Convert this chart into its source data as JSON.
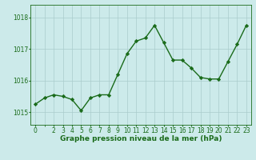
{
  "x": [
    0,
    1,
    2,
    3,
    4,
    5,
    6,
    7,
    8,
    9,
    10,
    11,
    12,
    13,
    14,
    15,
    16,
    17,
    18,
    19,
    20,
    21,
    22,
    23
  ],
  "y": [
    1015.25,
    1015.45,
    1015.55,
    1015.5,
    1015.4,
    1015.05,
    1015.45,
    1015.55,
    1015.55,
    1016.2,
    1016.85,
    1017.25,
    1017.35,
    1017.75,
    1017.2,
    1016.65,
    1016.65,
    1016.4,
    1016.1,
    1016.05,
    1016.05,
    1016.6,
    1017.15,
    1017.75
  ],
  "line_color": "#1a6b1a",
  "marker": "D",
  "markersize": 2.2,
  "linewidth": 1.0,
  "background_color": "#cceaea",
  "grid_color": "#aacccc",
  "xlabel": "Graphe pression niveau de la mer (hPa)",
  "xlabel_fontsize": 6.5,
  "xlabel_color": "#1a6b1a",
  "xlabel_fontweight": "bold",
  "tick_color": "#1a6b1a",
  "tick_fontsize": 5.5,
  "yticks": [
    1015,
    1016,
    1017,
    1018
  ],
  "ylim": [
    1014.6,
    1018.4
  ],
  "xlim": [
    -0.5,
    23.5
  ],
  "xticks": [
    0,
    2,
    3,
    4,
    5,
    6,
    7,
    8,
    9,
    10,
    11,
    12,
    13,
    14,
    15,
    16,
    17,
    18,
    19,
    20,
    21,
    22,
    23
  ]
}
